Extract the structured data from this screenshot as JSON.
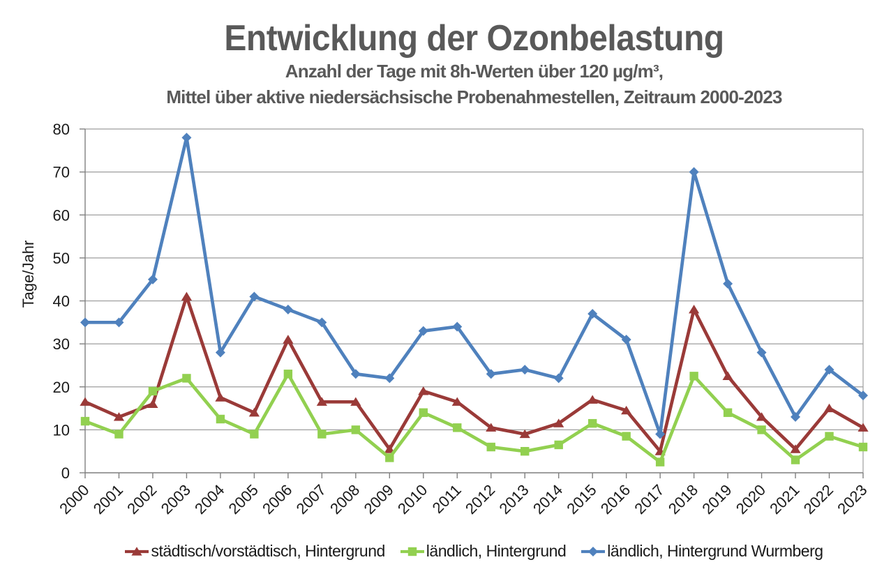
{
  "chart_data": {
    "type": "line",
    "title": "Entwicklung der Ozonbelastung",
    "subtitle_line1": "Anzahl der Tage mit 8h-Werten über 120 µg/m³,",
    "subtitle_line2": "Mittel über aktive niedersächsische Probenahmestellen, Zeitraum 2000-2023",
    "ylabel": "Tage/Jahr",
    "ylim": [
      0,
      80
    ],
    "ytick_step": 10,
    "grid": true,
    "legend_position": "bottom",
    "categories": [
      "2000",
      "2001",
      "2002",
      "2003",
      "2004",
      "2005",
      "2006",
      "2007",
      "2008",
      "2009",
      "2010",
      "2011",
      "2012",
      "2013",
      "2014",
      "2015",
      "2016",
      "2017",
      "2018",
      "2019",
      "2020",
      "2021",
      "2022",
      "2023"
    ],
    "series": [
      {
        "name": "städtisch/vorstädtisch, Hintergrund",
        "color": "#9A3A38",
        "marker": "triangle",
        "values": [
          16.5,
          13,
          16,
          41,
          17.5,
          14,
          31,
          16.5,
          16.5,
          5.5,
          19,
          16.5,
          10.5,
          9,
          11.5,
          17,
          14.5,
          5,
          38,
          22.5,
          13,
          5.5,
          15,
          10.5
        ]
      },
      {
        "name": "ländlich, Hintergrund",
        "color": "#92D050",
        "marker": "square",
        "values": [
          12,
          9,
          19,
          22,
          12.5,
          9,
          23,
          9,
          10,
          3.5,
          14,
          10.5,
          6,
          5,
          6.5,
          11.5,
          8.5,
          2.5,
          22.5,
          14,
          10,
          3,
          8.5,
          6
        ]
      },
      {
        "name": "ländlich, Hintergrund Wurmberg",
        "color": "#4F81BD",
        "marker": "diamond",
        "values": [
          35,
          35,
          45,
          78,
          28,
          41,
          38,
          35,
          23,
          22,
          33,
          34,
          23,
          24,
          22,
          37,
          31,
          9,
          70,
          44,
          28,
          13,
          24,
          18
        ]
      }
    ],
    "colors": {
      "title": "#595959",
      "axis": "#7F7F7F",
      "grid": "#9E9E9E",
      "tick_text": "#1A1A1A"
    }
  }
}
